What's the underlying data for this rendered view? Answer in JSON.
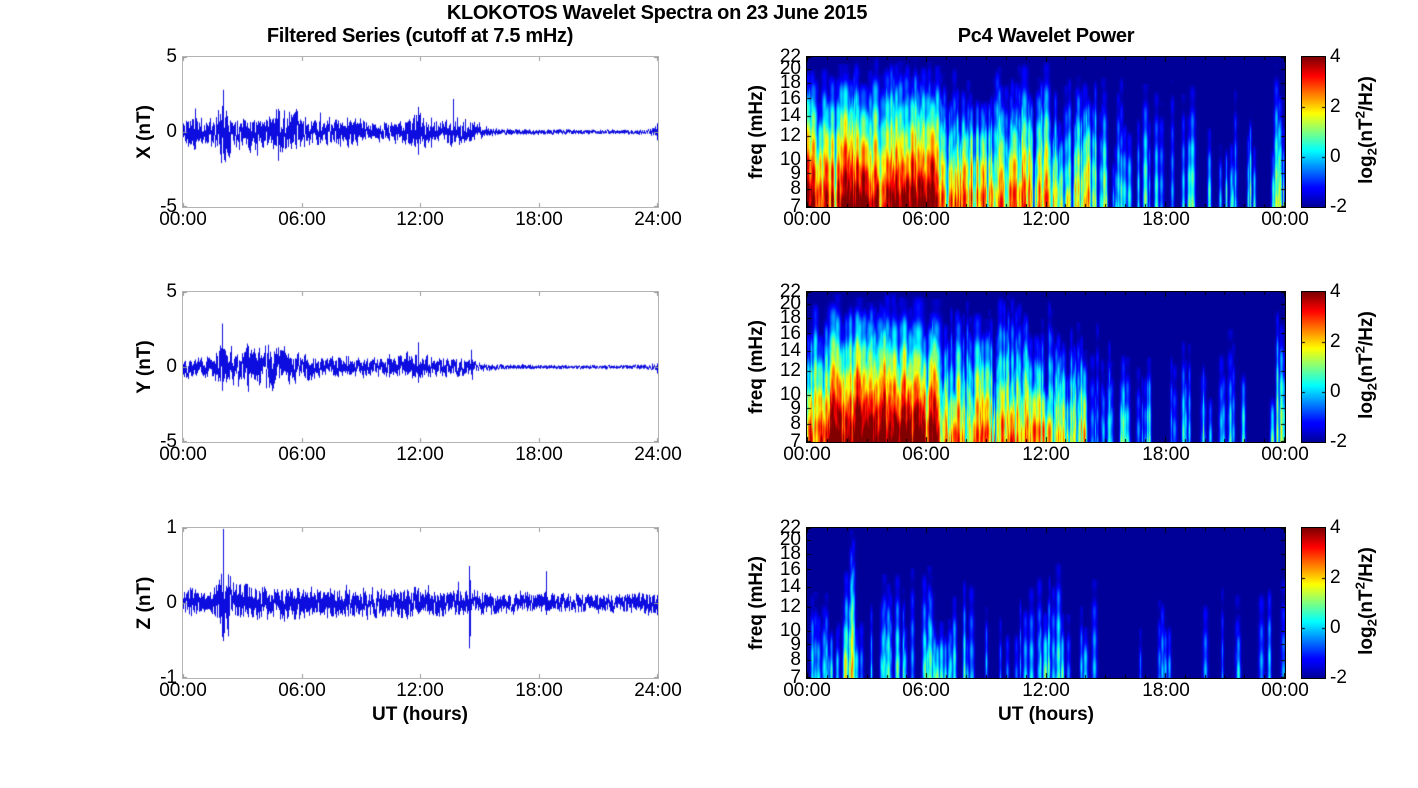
{
  "title": "KLOKOTOS Wavelet Spectra on 23 June 2015",
  "left_column": {
    "title": "Filtered Series (cutoff at 7.5 mHz)",
    "xlabel": "UT (hours)",
    "x_ticks": [
      "00:00",
      "06:00",
      "12:00",
      "18:00",
      "24:00"
    ],
    "panels": [
      {
        "ylabel": "X (nT)",
        "y_ticks": [
          "5",
          "0",
          "-5"
        ],
        "ylim": [
          -5,
          5
        ]
      },
      {
        "ylabel": "Y (nT)",
        "y_ticks": [
          "5",
          "0",
          "-5"
        ],
        "ylim": [
          -5,
          5
        ]
      },
      {
        "ylabel": "Z (nT)",
        "y_ticks": [
          "1",
          "0",
          "-1"
        ],
        "ylim": [
          -1,
          1
        ]
      }
    ],
    "line_color": "#0000dd"
  },
  "right_column": {
    "title": "Pc4 Wavelet Power",
    "xlabel": "UT (hours)",
    "x_ticks": [
      "00:00",
      "06:00",
      "12:00",
      "18:00",
      "00:00"
    ],
    "ylabel": "freq (mHz)",
    "freq_ticks": [
      "22",
      "20",
      "18",
      "16",
      "14",
      "12",
      "10",
      "9",
      "8",
      "7"
    ],
    "colorbar": {
      "ticks": [
        "4",
        "2",
        "0",
        "-2"
      ],
      "range": [
        -2,
        4
      ],
      "colormap": "jet",
      "label_parts": {
        "p1": "log",
        "sub": "2",
        "p2": "(nT",
        "sup": "2",
        "p3": "/Hz)"
      }
    }
  },
  "chart_data": [
    {
      "type": "line",
      "panel": "X",
      "title": "Filtered Series (cutoff at 7.5 mHz)",
      "xlabel": "UT (hours)",
      "ylabel": "X (nT)",
      "xlim_hours": [
        0,
        24
      ],
      "ylim": [
        -5,
        5
      ],
      "x_ticks": [
        "00:00",
        "06:00",
        "12:00",
        "18:00",
        "24:00"
      ],
      "line_color": "#0000dd",
      "seed": 11,
      "amplitude_envelope_nT": [
        [
          0,
          0.7
        ],
        [
          0.6,
          1.0
        ],
        [
          0.9,
          0.6
        ],
        [
          1.6,
          0.7
        ],
        [
          2.0,
          1.6
        ],
        [
          2.2,
          1.3
        ],
        [
          2.6,
          0.7
        ],
        [
          3.3,
          0.8
        ],
        [
          3.9,
          0.9
        ],
        [
          4.4,
          0.7
        ],
        [
          4.8,
          1.1
        ],
        [
          5.4,
          1.0
        ],
        [
          5.9,
          1.1
        ],
        [
          6.3,
          0.6
        ],
        [
          7.0,
          0.7
        ],
        [
          7.6,
          0.6
        ],
        [
          8.4,
          0.8
        ],
        [
          9.1,
          0.5
        ],
        [
          10.0,
          0.45
        ],
        [
          10.6,
          0.5
        ],
        [
          11.3,
          0.7
        ],
        [
          11.9,
          1.0
        ],
        [
          12.4,
          0.6
        ],
        [
          13.0,
          0.5
        ],
        [
          13.6,
          0.8
        ],
        [
          14.2,
          0.6
        ],
        [
          14.8,
          0.5
        ],
        [
          15.3,
          0.25
        ],
        [
          16,
          0.18
        ],
        [
          17,
          0.15
        ],
        [
          18.5,
          0.15
        ],
        [
          20,
          0.13
        ],
        [
          22,
          0.12
        ],
        [
          23.5,
          0.12
        ],
        [
          24,
          0.3
        ]
      ],
      "spikes_nT": [
        [
          2.05,
          2.6
        ],
        [
          0.62,
          1.1
        ],
        [
          3.75,
          1.5
        ],
        [
          4.85,
          1.6
        ],
        [
          5.7,
          1.7
        ],
        [
          6.95,
          1.0
        ],
        [
          11.9,
          1.5
        ],
        [
          12.55,
          1.2
        ],
        [
          13.65,
          1.5
        ],
        [
          14.25,
          1.0
        ],
        [
          23.97,
          0.6
        ]
      ]
    },
    {
      "type": "line",
      "panel": "Y",
      "xlabel": "UT (hours)",
      "ylabel": "Y (nT)",
      "xlim_hours": [
        0,
        24
      ],
      "ylim": [
        -5,
        5
      ],
      "x_ticks": [
        "00:00",
        "06:00",
        "12:00",
        "18:00",
        "24:00"
      ],
      "line_color": "#0000dd",
      "seed": 22,
      "amplitude_envelope_nT": [
        [
          0,
          0.55
        ],
        [
          0.8,
          0.5
        ],
        [
          1.5,
          0.55
        ],
        [
          2.0,
          1.3
        ],
        [
          2.3,
          0.8
        ],
        [
          3.0,
          0.9
        ],
        [
          3.5,
          1.1
        ],
        [
          4.0,
          1.0
        ],
        [
          4.5,
          1.2
        ],
        [
          5.0,
          1.0
        ],
        [
          5.5,
          0.8
        ],
        [
          6.2,
          0.6
        ],
        [
          7.0,
          0.55
        ],
        [
          8,
          0.5
        ],
        [
          9,
          0.45
        ],
        [
          10,
          0.5
        ],
        [
          11,
          0.55
        ],
        [
          11.5,
          0.7
        ],
        [
          12,
          0.6
        ],
        [
          12.7,
          0.5
        ],
        [
          13.5,
          0.45
        ],
        [
          14.3,
          0.45
        ],
        [
          15,
          0.2
        ],
        [
          16,
          0.15
        ],
        [
          18,
          0.12
        ],
        [
          20,
          0.1
        ],
        [
          22,
          0.1
        ],
        [
          24,
          0.15
        ]
      ],
      "spikes_nT": [
        [
          2.0,
          2.5
        ],
        [
          3.3,
          1.4
        ],
        [
          4.6,
          1.3
        ],
        [
          11.9,
          1.4
        ],
        [
          14.6,
          1.1
        ],
        [
          23.97,
          0.4
        ]
      ]
    },
    {
      "type": "line",
      "panel": "Z",
      "xlabel": "UT (hours)",
      "ylabel": "Z (nT)",
      "xlim_hours": [
        0,
        24
      ],
      "ylim": [
        -1,
        1
      ],
      "x_ticks": [
        "00:00",
        "06:00",
        "12:00",
        "18:00",
        "24:00"
      ],
      "line_color": "#0000dd",
      "seed": 33,
      "amplitude_envelope_nT": [
        [
          0,
          0.13
        ],
        [
          1.5,
          0.14
        ],
        [
          2.0,
          0.3
        ],
        [
          2.5,
          0.2
        ],
        [
          3.5,
          0.16
        ],
        [
          5,
          0.17
        ],
        [
          6.5,
          0.16
        ],
        [
          8,
          0.15
        ],
        [
          9.5,
          0.14
        ],
        [
          11,
          0.15
        ],
        [
          12.5,
          0.15
        ],
        [
          14,
          0.14
        ],
        [
          15,
          0.12
        ],
        [
          16.5,
          0.1
        ],
        [
          18,
          0.1
        ],
        [
          20,
          0.09
        ],
        [
          22,
          0.09
        ],
        [
          24,
          0.12
        ]
      ],
      "spikes_nT": [
        [
          2.05,
          0.9
        ],
        [
          2.3,
          0.5
        ],
        [
          14.5,
          0.68
        ],
        [
          13.9,
          0.3
        ],
        [
          18.35,
          0.32
        ],
        [
          23.97,
          0.2
        ]
      ]
    },
    {
      "type": "heatmap",
      "panel": "X",
      "title": "Pc4 Wavelet Power",
      "xlabel": "UT (hours)",
      "ylabel": "freq (mHz)",
      "xlim_hours": [
        0,
        24
      ],
      "x_ticks": [
        "00:00",
        "06:00",
        "12:00",
        "18:00",
        "00:00"
      ],
      "freq_range_mHz": [
        7,
        22
      ],
      "freq_scale": "log",
      "freq_ticks": [
        22,
        20,
        18,
        16,
        14,
        12,
        10,
        9,
        8,
        7
      ],
      "color_scale": {
        "label": "log2(nT^2/Hz)",
        "range": [
          -2,
          4
        ],
        "colormap": "jet"
      },
      "background_value": -2,
      "seed": 101,
      "event_segments_format": [
        "start_h",
        "end_h",
        "events_per_hour",
        "peak_log2_min",
        "peak_log2_max",
        "height_frac_min",
        "height_frac_max"
      ],
      "event_segments": [
        [
          0,
          1.5,
          24,
          1.5,
          4.6,
          0.4,
          1
        ],
        [
          1.5,
          3.1,
          30,
          2.5,
          5,
          0.5,
          1
        ],
        [
          3.1,
          6.6,
          30,
          2,
          4.8,
          0.4,
          1
        ],
        [
          6.6,
          9.2,
          22,
          0.8,
          3.6,
          0.35,
          0.95
        ],
        [
          9.2,
          12.2,
          22,
          0.8,
          3.6,
          0.35,
          1
        ],
        [
          12.2,
          14.2,
          16,
          0.3,
          3,
          0.3,
          0.9
        ],
        [
          14.2,
          16.5,
          6,
          -0.6,
          1.6,
          0.3,
          0.9
        ],
        [
          16.5,
          20,
          3.5,
          -0.6,
          1.2,
          0.3,
          0.85
        ],
        [
          20,
          23.5,
          3,
          -0.6,
          1.1,
          0.3,
          0.8
        ],
        [
          23.6,
          24,
          12,
          0.5,
          2.6,
          0.5,
          1
        ]
      ]
    },
    {
      "type": "heatmap",
      "panel": "Y",
      "xlabel": "UT (hours)",
      "ylabel": "freq (mHz)",
      "xlim_hours": [
        0,
        24
      ],
      "x_ticks": [
        "00:00",
        "06:00",
        "12:00",
        "18:00",
        "00:00"
      ],
      "freq_range_mHz": [
        7,
        22
      ],
      "freq_scale": "log",
      "freq_ticks": [
        22,
        20,
        18,
        16,
        14,
        12,
        10,
        9,
        8,
        7
      ],
      "color_scale": {
        "label": "log2(nT^2/Hz)",
        "range": [
          -2,
          4
        ],
        "colormap": "jet"
      },
      "background_value": -2,
      "seed": 202,
      "event_segments_format": [
        "start_h",
        "end_h",
        "events_per_hour",
        "peak_log2_min",
        "peak_log2_max",
        "height_frac_min",
        "height_frac_max"
      ],
      "event_segments": [
        [
          0,
          1.1,
          20,
          1,
          4,
          0.4,
          1
        ],
        [
          1.1,
          2.6,
          28,
          2.5,
          5,
          0.5,
          1
        ],
        [
          2.6,
          6.6,
          30,
          2.8,
          5,
          0.5,
          1
        ],
        [
          6.6,
          9.2,
          20,
          0.8,
          3.4,
          0.35,
          0.95
        ],
        [
          9.2,
          12.2,
          22,
          0.8,
          3.6,
          0.35,
          1
        ],
        [
          12.2,
          14.2,
          14,
          0.3,
          3,
          0.3,
          0.9
        ],
        [
          14.2,
          16.5,
          5,
          -0.6,
          1.6,
          0.3,
          0.9
        ],
        [
          16.5,
          23.5,
          3,
          -0.6,
          1.1,
          0.3,
          0.8
        ],
        [
          23.6,
          24,
          12,
          0.3,
          2.4,
          0.5,
          1
        ]
      ]
    },
    {
      "type": "heatmap",
      "panel": "Z",
      "xlabel": "UT (hours)",
      "ylabel": "freq (mHz)",
      "xlim_hours": [
        0,
        24
      ],
      "x_ticks": [
        "00:00",
        "06:00",
        "12:00",
        "18:00",
        "00:00"
      ],
      "freq_range_mHz": [
        7,
        22
      ],
      "freq_scale": "log",
      "freq_ticks": [
        22,
        20,
        18,
        16,
        14,
        12,
        10,
        9,
        8,
        7
      ],
      "color_scale": {
        "label": "log2(nT^2/Hz)",
        "range": [
          -2,
          4
        ],
        "colormap": "jet"
      },
      "background_value": -2,
      "seed": 303,
      "event_segments_format": [
        "start_h",
        "end_h",
        "events_per_hour",
        "peak_log2_min",
        "peak_log2_max",
        "height_frac_min",
        "height_frac_max"
      ],
      "event_segments": [
        [
          0,
          1.6,
          9,
          -0.9,
          0.6,
          0.2,
          0.6
        ],
        [
          1.85,
          2.3,
          16,
          0.5,
          2.6,
          0.5,
          1
        ],
        [
          2.3,
          6.2,
          7,
          -0.6,
          1.2,
          0.25,
          0.8
        ],
        [
          6.2,
          8.6,
          6,
          -0.6,
          1.3,
          0.25,
          0.7
        ],
        [
          8.6,
          11,
          2.5,
          -1,
          0.3,
          0.3,
          0.6
        ],
        [
          11,
          12.7,
          6,
          -0.5,
          1.1,
          0.3,
          0.8
        ],
        [
          12.7,
          14.7,
          3,
          -0.6,
          1,
          0.3,
          0.7
        ],
        [
          14.7,
          23.5,
          1.4,
          -1,
          0.4,
          0.3,
          0.7
        ],
        [
          23.85,
          24,
          7,
          -0.4,
          0.9,
          0.4,
          0.9
        ]
      ]
    }
  ]
}
